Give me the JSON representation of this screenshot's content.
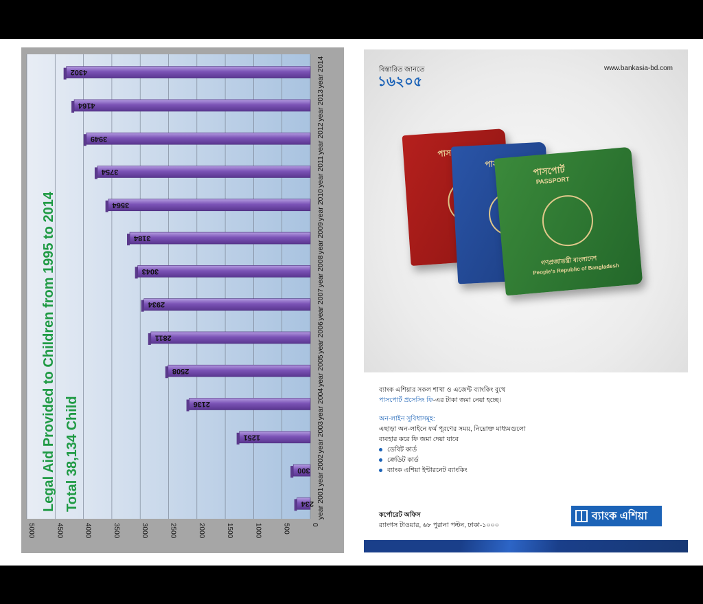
{
  "chart_data": {
    "type": "bar",
    "title": "Legal Aid Provided to Children from 1995 to 2014",
    "subtitle": "Total 38,134 Child",
    "categories": [
      "year 2001",
      "year 2002",
      "year 2003",
      "year 2004",
      "year 2005",
      "year 2006",
      "year 2007",
      "year 2008",
      "year 2009",
      "year 2010",
      "year 2011",
      "year 2012",
      "year 2013",
      "year 2014"
    ],
    "values": [
      234,
      300,
      1251,
      2136,
      2508,
      2811,
      2934,
      3043,
      3184,
      3564,
      3754,
      3949,
      4164,
      4302
    ],
    "value_labels": [
      "234",
      "300",
      "1251",
      "2136",
      "2508",
      "2811",
      "2934",
      "3043",
      "3184",
      "3564",
      "3754",
      "3949",
      "4164",
      "4302"
    ],
    "ylim": [
      0,
      5000
    ],
    "ticks": [
      "0",
      "500",
      "1000",
      "1500",
      "2000",
      "2500",
      "3000",
      "3500",
      "4000",
      "4500",
      "5000"
    ],
    "orientation": "rotated 90°",
    "grid": true,
    "colors": {
      "bar": "#7b53b6",
      "bar_top": "#a58ad6",
      "title": "#1f9a44",
      "panel": "#a6a6a6"
    }
  },
  "ad": {
    "know_more": "বিস্তারিত জানতে",
    "phone": "১৬২০৫",
    "website": "www.bankasia-bd.com",
    "passport_title": "পাসপোর্ট",
    "passport_label": "PASSPORT",
    "passport_country_bn": "গণপ্রজাতন্ত্রী বাংলাদেশ",
    "passport_country_en": "People's Republic of Bangladesh",
    "line1": "ব্যাংক এশিয়ার সকল শাখা ও এজেন্ট ব্যাংকিং বুথে",
    "line2_accent": "পাসপোর্ট প্রসেসিং ফি",
    "line2_rest": "-এর টাকা জমা নেয়া হচ্ছে।",
    "online_heading": "অন-লাইন সুবিধাসমূহ:",
    "online_line1": "এছাড়া অন-লাইনে ফর্ম পূরণের সময়, নিম্নোক্ত মাধ্যমগুলো",
    "online_line2": "ব্যবহার করে ফি জমা দেয়া যাবে",
    "bullets": [
      "ডেবিট কার্ড",
      "ক্রেডিট কার্ড",
      "ব্যাংক এশিয়া ইন্টারনেট ব্যাংকিং"
    ],
    "corp_title": "কর্পোরেট অফিস",
    "corp_address": "র‍্যাংগস টাওয়ার, ৬৮ পুরানা পল্টন, ঢাকা-১০০০",
    "logo_text": "ব্যাংক এশিয়া",
    "colors": {
      "accent": "#1c63b7"
    }
  }
}
